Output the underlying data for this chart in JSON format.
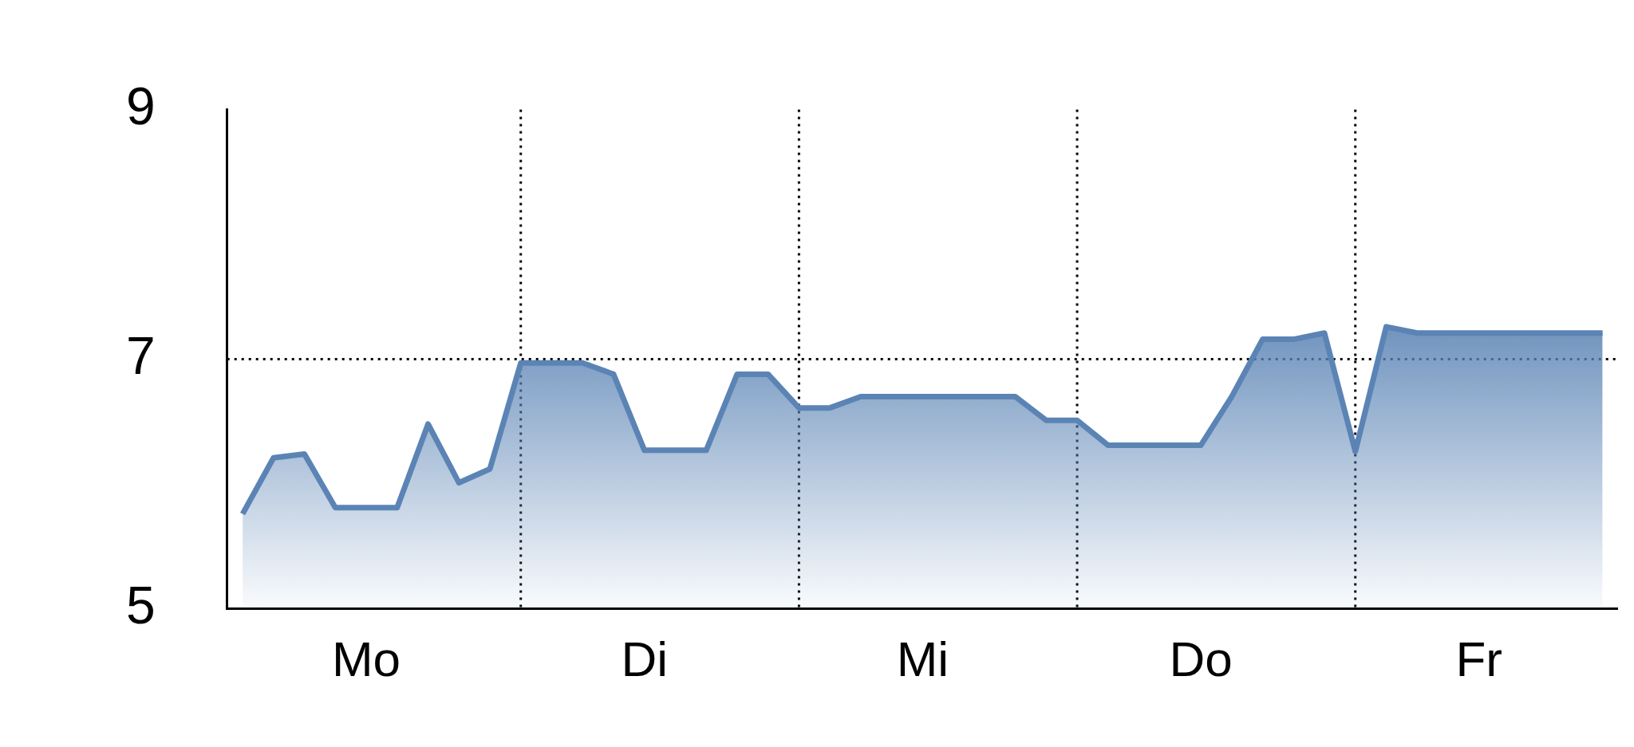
{
  "chart_data": {
    "type": "area",
    "categories": [
      null,
      null,
      null,
      null,
      "Mo",
      null,
      null,
      null,
      null,
      null,
      null,
      null,
      null,
      "Di",
      null,
      null,
      null,
      null,
      null,
      null,
      null,
      null,
      "Mi",
      null,
      null,
      null,
      null,
      null,
      null,
      null,
      null,
      "Do",
      null,
      null,
      null,
      null,
      null,
      null,
      null,
      null,
      "Fr",
      null,
      null,
      null,
      null
    ],
    "series": [
      {
        "color": "#5b84b5",
        "values": [
          5.76,
          6.21,
          6.24,
          5.81,
          5.81,
          5.81,
          6.48,
          6.01,
          6.12,
          6.97,
          6.97,
          6.97,
          6.88,
          6.27,
          6.27,
          6.27,
          6.88,
          6.88,
          6.61,
          6.61,
          6.7,
          6.7,
          6.7,
          6.7,
          6.7,
          6.7,
          6.51,
          6.51,
          6.31,
          6.31,
          6.31,
          6.31,
          6.7,
          7.16,
          7.16,
          7.21,
          6.26,
          7.26,
          7.21,
          7.21,
          7.21,
          7.21,
          7.21,
          7.21,
          7.21
        ]
      }
    ],
    "ylim": [
      5,
      9
    ],
    "yticks": [
      5,
      7,
      9
    ],
    "ref_lines": [
      {
        "axis": "y",
        "value": 7,
        "line_style": "dotted",
        "color": "#000000"
      }
    ],
    "grid": "x",
    "legend": false,
    "marker": "none",
    "line_style": "solid"
  }
}
